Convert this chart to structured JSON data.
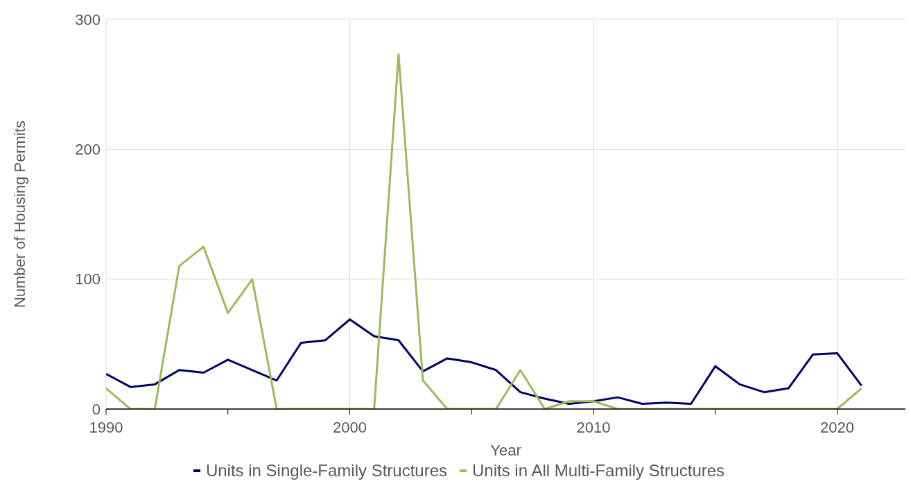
{
  "chart_data": {
    "type": "line",
    "xlabel": "Year",
    "ylabel": "Number of Housing Permits",
    "x": [
      1990,
      1991,
      1992,
      1993,
      1994,
      1995,
      1996,
      1997,
      1998,
      1999,
      2000,
      2001,
      2002,
      2003,
      2004,
      2005,
      2006,
      2007,
      2008,
      2009,
      2010,
      2011,
      2012,
      2013,
      2014,
      2015,
      2016,
      2017,
      2018,
      2019,
      2020,
      2021
    ],
    "series": [
      {
        "name": "Units in Single-Family Structures",
        "color": "#000066",
        "values": [
          27,
          17,
          19,
          30,
          28,
          38,
          30,
          22,
          51,
          53,
          69,
          56,
          53,
          29,
          39,
          36,
          30,
          13,
          8,
          4,
          6,
          9,
          4,
          5,
          4,
          33,
          19,
          13,
          16,
          42,
          43,
          18
        ]
      },
      {
        "name": "Units in All Multi-Family Structures",
        "color": "#9bbb59",
        "values": [
          16,
          0,
          0,
          110,
          125,
          74,
          100,
          0,
          0,
          0,
          0,
          0,
          273,
          22,
          0,
          0,
          0,
          30,
          0,
          6,
          6,
          0,
          0,
          0,
          0,
          0,
          0,
          0,
          0,
          0,
          0,
          16
        ]
      }
    ],
    "xlim": [
      1990,
      2022.8
    ],
    "xticks": [
      1990,
      {
        "value": 1995,
        "label": null
      },
      2000,
      {
        "value": 2005,
        "label": null
      },
      2010,
      {
        "value": 2015,
        "label": null
      },
      2020
    ],
    "ylim": [
      0,
      300
    ],
    "yticks": [
      0,
      100,
      200,
      300
    ],
    "grid": true,
    "legend": "bottom",
    "marker": "none",
    "line_style": "solid"
  }
}
